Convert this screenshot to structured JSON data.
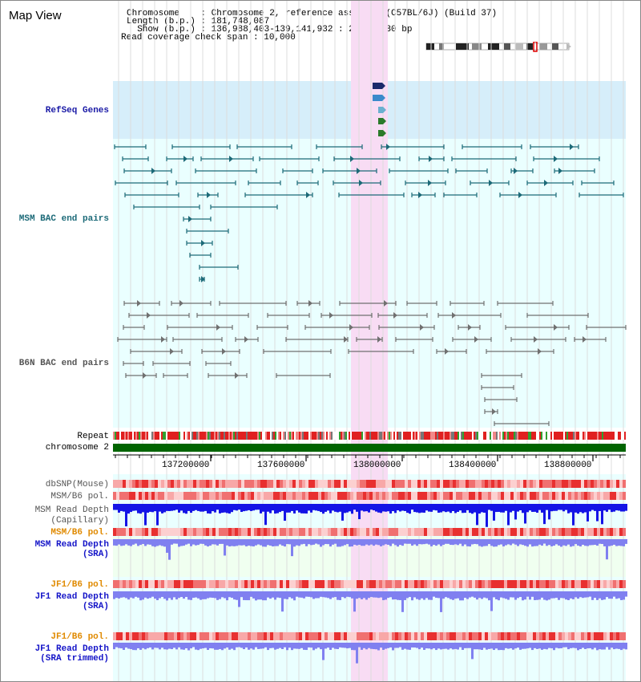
{
  "header": {
    "title": "Map View",
    "info_lines": [
      "Chromosome    : Chromosome 2, reference assembly (C57BL/6J) (Build 37)",
      "Length (b.p.) : 181,748,087",
      "  Show (b.p.) : 136,988,403-139,141,932 : 2,153,530 bp",
      "Read coverage check span : 10,000"
    ]
  },
  "tracks": {
    "refseq": "RefSeq Genes",
    "msm_bac": "MSM BAC end pairs",
    "b6n_bac": "B6N BAC end pairs",
    "repeat": "Repeat",
    "chromosome": "chromosome 2",
    "dbsnp": "dbSNP(Mouse)",
    "msm_b6_pol_1": "MSM/B6 pol.",
    "msm_depth_cap_1": "MSM Read Depth",
    "msm_depth_cap_2": "(Capillary)",
    "msm_b6_pol_2": "MSM/B6 pol.",
    "msm_depth_sra_1": "MSM Read Depth",
    "msm_depth_sra_2": "(SRA)",
    "jf1_b6_pol_1": "JF1/B6 pol.",
    "jf1_depth_sra_1": "JF1 Read Depth",
    "jf1_depth_sra_2": "(SRA)",
    "jf1_b6_pol_2": "JF1/B6 pol.",
    "jf1_depth_trim_1": "JF1 Read Depth",
    "jf1_depth_trim_2": "(SRA trimmed)"
  },
  "axis": {
    "ticks": [
      "137200000",
      "137600000",
      "138000000",
      "138400000",
      "138800000"
    ]
  },
  "colors": {
    "refseq_bg": "#d6eefa",
    "track_bg": "#eaffff",
    "highlight": "#f8dcf4",
    "msm_feature": "#1c6a78",
    "b6n_feature": "#707070",
    "chromosome_bar": "#006400",
    "depth_capillary": "#1414e6",
    "depth_sra": "#8080f0",
    "polymorphism": "#f08080"
  }
}
